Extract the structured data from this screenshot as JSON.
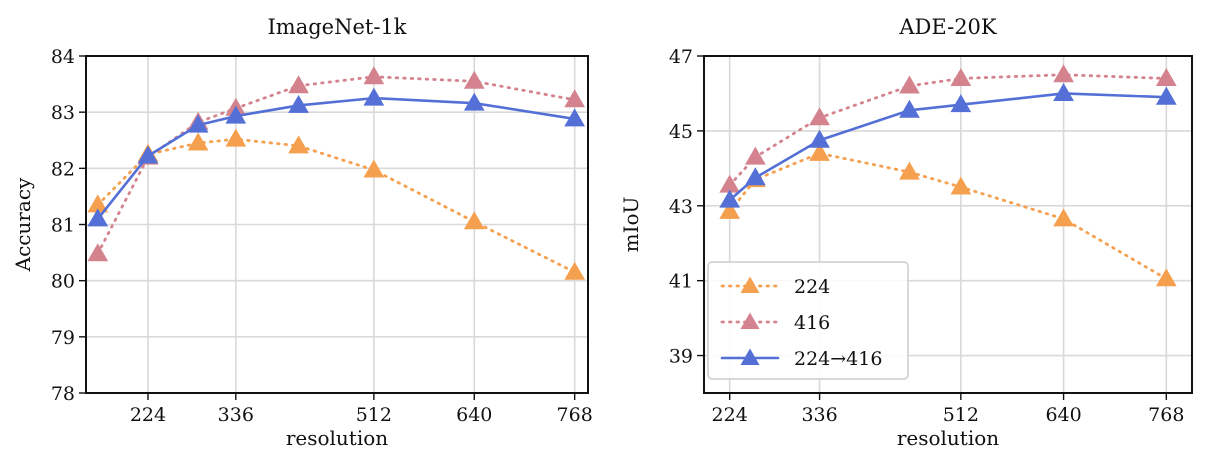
{
  "chart_data": [
    {
      "type": "line",
      "title": "ImageNet-1k",
      "xlabel": "resolution",
      "ylabel": "Accuracy",
      "xlim": [
        145,
        785
      ],
      "ylim": [
        78,
        84
      ],
      "xticks": [
        224,
        336,
        512,
        640,
        768
      ],
      "yticks": [
        78,
        79,
        80,
        81,
        82,
        83,
        84
      ],
      "grid": true,
      "series": [
        {
          "name": "224",
          "color": "#f5a04f",
          "style": "dotted",
          "marker": "triangle",
          "x": [
            160,
            224,
            288,
            336,
            416,
            512,
            640,
            768
          ],
          "y": [
            81.35,
            82.25,
            82.45,
            82.52,
            82.4,
            81.97,
            81.05,
            80.15
          ]
        },
        {
          "name": "416",
          "color": "#d4838e",
          "style": "dotted",
          "marker": "triangle",
          "x": [
            160,
            224,
            288,
            336,
            416,
            512,
            640,
            768
          ],
          "y": [
            80.48,
            82.2,
            82.82,
            83.07,
            83.47,
            83.63,
            83.55,
            83.22
          ]
        },
        {
          "name": "224→416",
          "color": "#5470d6",
          "style": "solid",
          "marker": "triangle",
          "x": [
            160,
            224,
            288,
            336,
            416,
            512,
            640,
            768
          ],
          "y": [
            81.1,
            82.22,
            82.77,
            82.93,
            83.12,
            83.25,
            83.16,
            82.88
          ]
        }
      ]
    },
    {
      "type": "line",
      "title": "ADE-20K",
      "xlabel": "resolution",
      "ylabel": "mIoU",
      "xlim": [
        192,
        800
      ],
      "ylim": [
        38,
        47
      ],
      "xticks": [
        224,
        336,
        512,
        640,
        768
      ],
      "yticks": [
        39,
        41,
        43,
        45,
        47
      ],
      "grid": true,
      "legend": "lower-left",
      "series": [
        {
          "name": "224",
          "color": "#f5a04f",
          "style": "dotted",
          "marker": "triangle",
          "x": [
            224,
            256,
            336,
            448,
            512,
            640,
            768
          ],
          "y": [
            42.85,
            43.7,
            44.4,
            43.9,
            43.5,
            42.65,
            41.05
          ]
        },
        {
          "name": "416",
          "color": "#d4838e",
          "style": "dotted",
          "marker": "triangle",
          "x": [
            224,
            256,
            336,
            448,
            512,
            640,
            768
          ],
          "y": [
            43.55,
            44.3,
            45.35,
            46.2,
            46.4,
            46.5,
            46.4
          ]
        },
        {
          "name": "224→416",
          "color": "#5470d6",
          "style": "solid",
          "marker": "triangle",
          "x": [
            224,
            256,
            336,
            448,
            512,
            640,
            768
          ],
          "y": [
            43.15,
            43.75,
            44.75,
            45.55,
            45.7,
            46.0,
            45.9
          ]
        }
      ]
    }
  ]
}
